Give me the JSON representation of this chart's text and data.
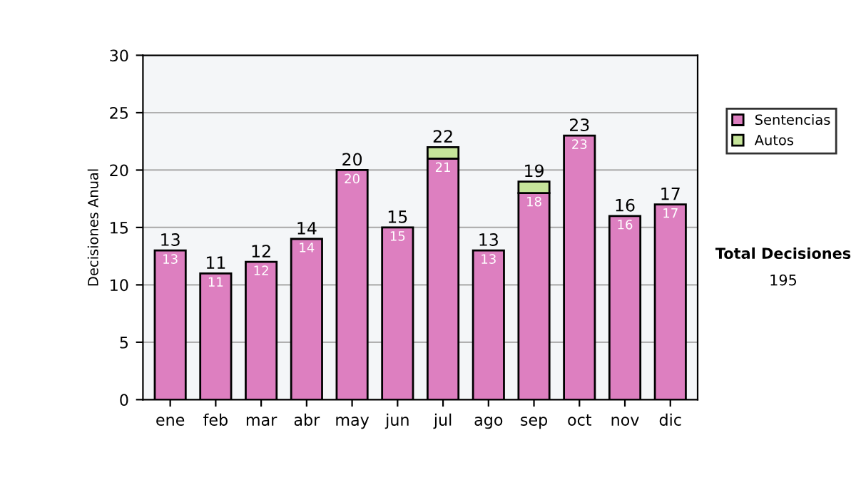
{
  "chart_data": {
    "type": "bar",
    "stacked": true,
    "ylabel": "Decisiones Anual",
    "categories": [
      "ene",
      "feb",
      "mar",
      "abr",
      "may",
      "jun",
      "jul",
      "ago",
      "sep",
      "oct",
      "nov",
      "dic"
    ],
    "series": [
      {
        "name": "Sentencias",
        "color": "#dd7fc0",
        "values": [
          13,
          11,
          12,
          14,
          20,
          15,
          21,
          13,
          18,
          23,
          16,
          17
        ],
        "value_labels": [
          "13",
          "11",
          "12",
          "14",
          "20",
          "15",
          "21",
          "13",
          "18",
          "23",
          "16",
          "17"
        ]
      },
      {
        "name": "Autos",
        "color": "#c6e59a",
        "values": [
          null,
          null,
          null,
          null,
          null,
          null,
          1,
          null,
          1,
          null,
          null,
          null
        ]
      }
    ],
    "totals": [
      "13",
      "11",
      "12",
      "14",
      "20",
      "15",
      "22",
      "13",
      "19",
      "23",
      "16",
      "17"
    ],
    "ylim": [
      0,
      30
    ],
    "yticks": [
      0,
      5,
      10,
      15,
      20,
      25,
      30
    ],
    "grid": "y",
    "legend": "right",
    "annotations": [
      "Total Decisiones",
      "195"
    ]
  }
}
